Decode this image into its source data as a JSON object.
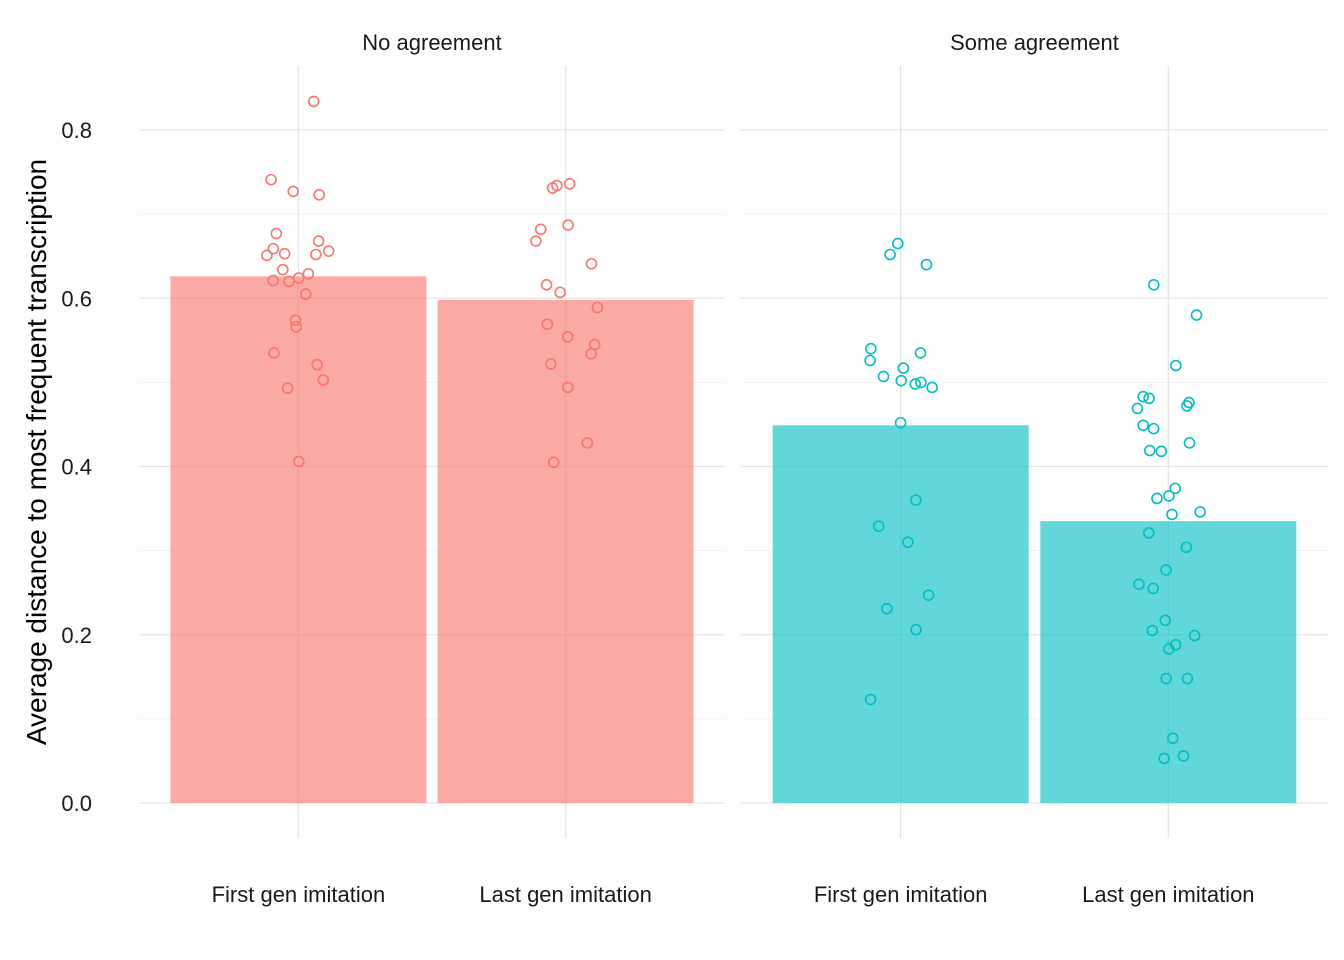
{
  "chart_data": {
    "type": "bar",
    "ylabel": "Average distance to most frequent transcription",
    "xlabel": "",
    "ylim": [
      -0.04,
      0.88
    ],
    "yticks": [
      0.0,
      0.2,
      0.4,
      0.6,
      0.8
    ],
    "ytick_labels": [
      "0.0",
      "0.2",
      "0.4",
      "0.6",
      "0.8"
    ],
    "grid": true,
    "legend": "none",
    "colors": {
      "No agreement": "#f8766d",
      "Some agreement": "#00bfc4"
    },
    "facets": [
      {
        "label": "No agreement",
        "categories": [
          "First gen imitation",
          "Last gen imitation"
        ],
        "values": [
          0.626,
          0.598
        ],
        "points": [
          [
            0.834,
            0.741,
            0.727,
            0.723,
            0.677,
            0.668,
            0.659,
            0.656,
            0.653,
            0.652,
            0.651,
            0.634,
            0.629,
            0.624,
            0.621,
            0.62,
            0.605,
            0.574,
            0.566,
            0.535,
            0.521,
            0.503,
            0.493,
            0.406
          ],
          [
            0.736,
            0.734,
            0.731,
            0.687,
            0.682,
            0.668,
            0.641,
            0.616,
            0.607,
            0.589,
            0.569,
            0.554,
            0.545,
            0.534,
            0.522,
            0.494,
            0.428,
            0.405
          ]
        ]
      },
      {
        "label": "Some agreement",
        "categories": [
          "First gen imitation",
          "Last gen imitation"
        ],
        "values": [
          0.449,
          0.335
        ],
        "points": [
          [
            0.665,
            0.652,
            0.64,
            0.54,
            0.535,
            0.526,
            0.517,
            0.507,
            0.502,
            0.5,
            0.498,
            0.494,
            0.452,
            0.36,
            0.329,
            0.31,
            0.247,
            0.231,
            0.206,
            0.123
          ],
          [
            0.616,
            0.58,
            0.52,
            0.483,
            0.481,
            0.476,
            0.472,
            0.469,
            0.449,
            0.445,
            0.428,
            0.419,
            0.418,
            0.374,
            0.365,
            0.362,
            0.346,
            0.343,
            0.321,
            0.304,
            0.277,
            0.26,
            0.255,
            0.217,
            0.205,
            0.199,
            0.188,
            0.183,
            0.148,
            0.148,
            0.077,
            0.056,
            0.053
          ]
        ]
      }
    ]
  }
}
